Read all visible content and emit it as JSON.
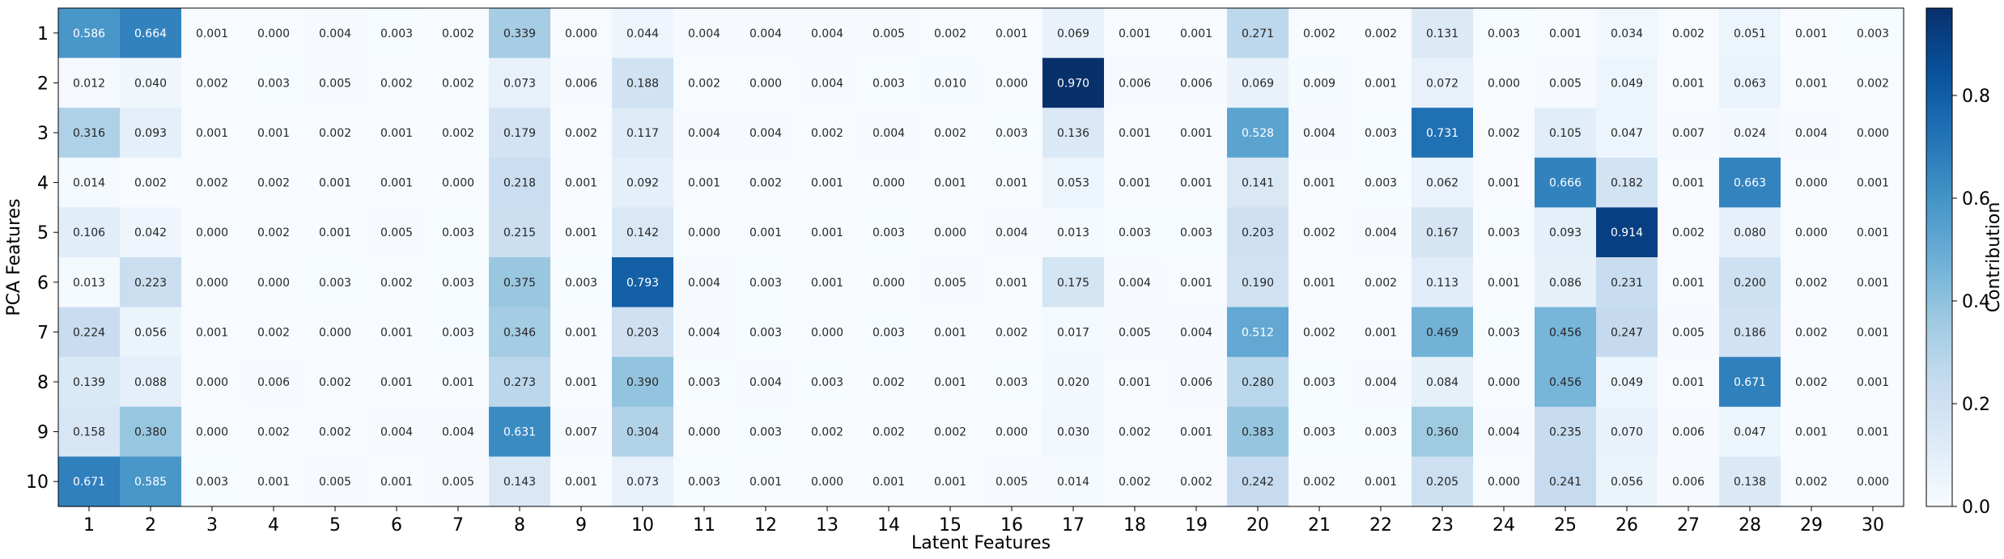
{
  "chart_data": {
    "type": "heatmap",
    "title": "",
    "xlabel": "Latent Features",
    "ylabel": "PCA Features",
    "x_categories": [
      "1",
      "2",
      "3",
      "4",
      "5",
      "6",
      "7",
      "8",
      "9",
      "10",
      "11",
      "12",
      "13",
      "14",
      "15",
      "16",
      "17",
      "18",
      "19",
      "20",
      "21",
      "22",
      "23",
      "24",
      "25",
      "26",
      "27",
      "28",
      "29",
      "30"
    ],
    "y_categories": [
      "1",
      "2",
      "3",
      "4",
      "5",
      "6",
      "7",
      "8",
      "9",
      "10"
    ],
    "values": [
      [
        0.586,
        0.664,
        0.001,
        0.0,
        0.004,
        0.003,
        0.002,
        0.339,
        0.0,
        0.044,
        0.004,
        0.004,
        0.004,
        0.005,
        0.002,
        0.001,
        0.069,
        0.001,
        0.001,
        0.271,
        0.002,
        0.002,
        0.131,
        0.003,
        0.001,
        0.034,
        0.002,
        0.051,
        0.001,
        0.003
      ],
      [
        0.012,
        0.04,
        0.002,
        0.003,
        0.005,
        0.002,
        0.002,
        0.073,
        0.006,
        0.188,
        0.002,
        0.0,
        0.004,
        0.003,
        0.01,
        0.0,
        0.97,
        0.006,
        0.006,
        0.069,
        0.009,
        0.001,
        0.072,
        0.0,
        0.005,
        0.049,
        0.001,
        0.063,
        0.001,
        0.002
      ],
      [
        0.316,
        0.093,
        0.001,
        0.001,
        0.002,
        0.001,
        0.002,
        0.179,
        0.002,
        0.117,
        0.004,
        0.004,
        0.002,
        0.004,
        0.002,
        0.003,
        0.136,
        0.001,
        0.001,
        0.528,
        0.004,
        0.003,
        0.731,
        0.002,
        0.105,
        0.047,
        0.007,
        0.024,
        0.004,
        0.0
      ],
      [
        0.014,
        0.002,
        0.002,
        0.002,
        0.001,
        0.001,
        0.0,
        0.218,
        0.001,
        0.092,
        0.001,
        0.002,
        0.001,
        0.0,
        0.001,
        0.001,
        0.053,
        0.001,
        0.001,
        0.141,
        0.001,
        0.003,
        0.062,
        0.001,
        0.666,
        0.182,
        0.001,
        0.663,
        0.0,
        0.001
      ],
      [
        0.106,
        0.042,
        0.0,
        0.002,
        0.001,
        0.005,
        0.003,
        0.215,
        0.001,
        0.142,
        0.0,
        0.001,
        0.001,
        0.003,
        0.0,
        0.004,
        0.013,
        0.003,
        0.003,
        0.203,
        0.002,
        0.004,
        0.167,
        0.003,
        0.093,
        0.914,
        0.002,
        0.08,
        0.0,
        0.001
      ],
      [
        0.013,
        0.223,
        0.0,
        0.0,
        0.003,
        0.002,
        0.003,
        0.375,
        0.003,
        0.793,
        0.004,
        0.003,
        0.001,
        0.0,
        0.005,
        0.001,
        0.175,
        0.004,
        0.001,
        0.19,
        0.001,
        0.002,
        0.113,
        0.001,
        0.086,
        0.231,
        0.001,
        0.2,
        0.002,
        0.001
      ],
      [
        0.224,
        0.056,
        0.001,
        0.002,
        0.0,
        0.001,
        0.003,
        0.346,
        0.001,
        0.203,
        0.004,
        0.003,
        0.0,
        0.003,
        0.001,
        0.002,
        0.017,
        0.005,
        0.004,
        0.512,
        0.002,
        0.001,
        0.469,
        0.003,
        0.456,
        0.247,
        0.005,
        0.186,
        0.002,
        0.001
      ],
      [
        0.139,
        0.088,
        0.0,
        0.006,
        0.002,
        0.001,
        0.001,
        0.273,
        0.001,
        0.39,
        0.003,
        0.004,
        0.003,
        0.002,
        0.001,
        0.003,
        0.02,
        0.001,
        0.006,
        0.28,
        0.003,
        0.004,
        0.084,
        0.0,
        0.456,
        0.049,
        0.001,
        0.671,
        0.002,
        0.001
      ],
      [
        0.158,
        0.38,
        0.0,
        0.002,
        0.002,
        0.004,
        0.004,
        0.631,
        0.007,
        0.304,
        0.0,
        0.003,
        0.002,
        0.002,
        0.002,
        0.0,
        0.03,
        0.002,
        0.001,
        0.383,
        0.003,
        0.003,
        0.36,
        0.004,
        0.235,
        0.07,
        0.006,
        0.047,
        0.001,
        0.001
      ],
      [
        0.671,
        0.585,
        0.003,
        0.001,
        0.005,
        0.001,
        0.005,
        0.143,
        0.001,
        0.073,
        0.003,
        0.001,
        0.0,
        0.001,
        0.001,
        0.005,
        0.014,
        0.002,
        0.002,
        0.242,
        0.002,
        0.001,
        0.205,
        0.0,
        0.241,
        0.056,
        0.006,
        0.138,
        0.002,
        0.0
      ]
    ],
    "value_format": "3 decimals",
    "colormap": "Blues",
    "vmin": 0.0,
    "vmax": 0.97,
    "colorbar": {
      "label": "Contribution",
      "ticks": [
        0.0,
        0.2,
        0.4,
        0.6,
        0.8
      ],
      "tick_labels": [
        "0.0",
        "0.2",
        "0.4",
        "0.6",
        "0.8"
      ]
    },
    "grid": false,
    "legend": "none"
  }
}
